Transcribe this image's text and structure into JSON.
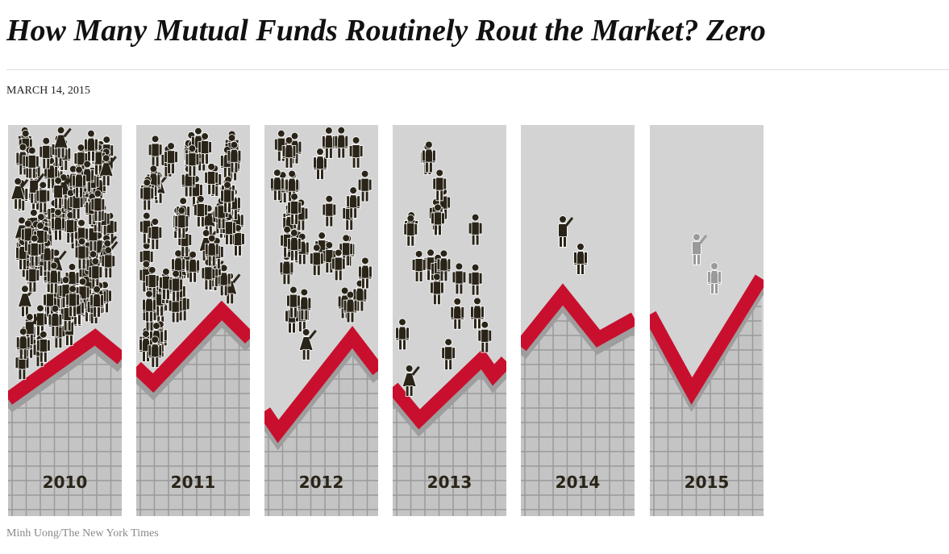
{
  "headline": "How Many Mutual Funds Routinely Rout the Market? Zero",
  "date": "MARCH 14, 2015",
  "credit": "Minh Uong/The New York Times",
  "colors": {
    "panel": "#d3d3d3",
    "grid": "#9a9a9a",
    "line": "#c8102e",
    "figure": "#2a2418",
    "faded_figure": "#9a9a9a"
  },
  "panels": [
    {
      "year": "2010",
      "people_count": 120
    },
    {
      "year": "2011",
      "people_count": 80
    },
    {
      "year": "2012",
      "people_count": 42
    },
    {
      "year": "2013",
      "people_count": 22
    },
    {
      "year": "2014",
      "people_count": 2
    },
    {
      "year": "2015",
      "people_count": 2,
      "faded": true
    }
  ]
}
